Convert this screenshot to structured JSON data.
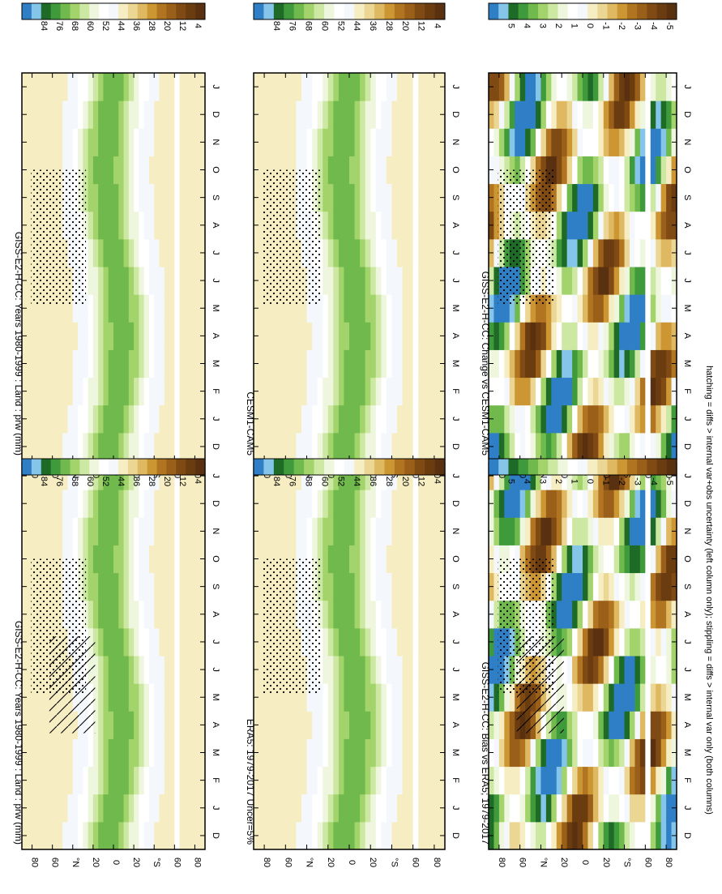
{
  "figure": {
    "footnote": "hatching = diffs > internal var+obs uncertainty (left column only); stippling = diffs > internal var only (both columns)"
  },
  "palettes": {
    "pw": [
      "#2f7fc6",
      "#86c5ea",
      "#1e6b28",
      "#3f9a3c",
      "#70b94c",
      "#a3d36b",
      "#cde8a3",
      "#eef6de",
      "#ffffff",
      "#f4f8fd",
      "#f6eec2",
      "#ecd694",
      "#dfb862",
      "#cc9633",
      "#b17420",
      "#9a5f19",
      "#7f4a13",
      "#6b3c10",
      "#5a3110"
    ],
    "diff": [
      "#2f7fc6",
      "#86c5ea",
      "#1e6b28",
      "#3f9a3c",
      "#70b94c",
      "#a3d36b",
      "#cde8a3",
      "#eef6de",
      "#ffffff",
      "#f4f8fd",
      "#f6eec2",
      "#ecd694",
      "#dfb862",
      "#cc9633",
      "#b17420",
      "#9a5f19",
      "#7f4a13",
      "#6b3c10",
      "#5a3110"
    ]
  },
  "chart_data": [
    {
      "type": "heatmap",
      "panel": "row1-left",
      "title": "GISS-E2-H-CC: Years 1980-1999 : Land : prw (mm)",
      "field": "pw",
      "hatching": true,
      "stippling": true,
      "x": [
        "D",
        "J",
        "F",
        "M",
        "A",
        "M",
        "J",
        "J",
        "A",
        "S",
        "O",
        "N",
        "D",
        "J"
      ],
      "y_ticks": [
        "80",
        "60",
        "°N",
        "20",
        "0",
        "20",
        "°S",
        "60",
        "80"
      ],
      "ylim": [
        -90,
        90
      ]
    },
    {
      "type": "heatmap",
      "panel": "row1-right",
      "title": "GISS-E2-H-CC: Years 1980-1999 : Land : prw (mm)",
      "field": "pw",
      "hatching": false,
      "stippling": true,
      "x": [
        "D",
        "J",
        "F",
        "M",
        "A",
        "M",
        "J",
        "J",
        "A",
        "S",
        "O",
        "N",
        "D",
        "J"
      ],
      "y_ticks": [
        "80",
        "60",
        "°N",
        "20",
        "0",
        "20",
        "°S",
        "60",
        "80"
      ],
      "ylim": [
        -90,
        90
      ]
    },
    {
      "type": "heatmap",
      "panel": "row2-left",
      "title": "ERA5: 1979-2017 Uncer=5%",
      "field": "pw",
      "hatching": false,
      "stippling": true,
      "x": [
        "D",
        "J",
        "F",
        "M",
        "A",
        "M",
        "J",
        "J",
        "A",
        "S",
        "O",
        "N",
        "D",
        "J"
      ],
      "y_ticks": [
        "80",
        "60",
        "°N",
        "20",
        "0",
        "20",
        "°S",
        "60",
        "80"
      ],
      "ylim": [
        -90,
        90
      ]
    },
    {
      "type": "heatmap",
      "panel": "row2-right",
      "title": "CESM1-CAM5",
      "field": "pw",
      "hatching": false,
      "stippling": true,
      "x": [
        "D",
        "J",
        "F",
        "M",
        "A",
        "M",
        "J",
        "J",
        "A",
        "S",
        "O",
        "N",
        "D",
        "J"
      ],
      "y_ticks": [
        "80",
        "60",
        "°N",
        "20",
        "0",
        "20",
        "°S",
        "60",
        "80"
      ],
      "ylim": [
        -90,
        90
      ]
    },
    {
      "type": "heatmap",
      "panel": "row3-left",
      "title": "GISS-E2-H-CC: Bias vs ERA5; 1979-2017",
      "field": "bias",
      "hatching": true,
      "stippling": true,
      "x": [
        "D",
        "J",
        "F",
        "M",
        "A",
        "M",
        "J",
        "J",
        "A",
        "S",
        "O",
        "N",
        "D",
        "J"
      ],
      "y_ticks": [
        "80",
        "60",
        "°N",
        "20",
        "0",
        "20",
        "°S",
        "60",
        "80"
      ],
      "ylim": [
        -90,
        90
      ]
    },
    {
      "type": "heatmap",
      "panel": "row3-right",
      "title": "GISS-E2-H-CC: Change vs CESM1-CAM5",
      "field": "change",
      "hatching": false,
      "stippling": true,
      "x": [
        "D",
        "J",
        "F",
        "M",
        "A",
        "M",
        "J",
        "J",
        "A",
        "S",
        "O",
        "N",
        "D",
        "J"
      ],
      "y_ticks": [
        "80",
        "60",
        "°N",
        "20",
        "0",
        "20",
        "°S",
        "60",
        "80"
      ],
      "ylim": [
        -90,
        90
      ]
    }
  ],
  "colorbars": [
    {
      "panel": "row1-left",
      "labels": [
        "84",
        "76",
        "68",
        "60",
        "52",
        "44",
        "36",
        "28",
        "20",
        "12",
        "4"
      ]
    },
    {
      "panel": "row1-right",
      "labels": [
        "84",
        "76",
        "68",
        "60",
        "52",
        "44",
        "36",
        "28",
        "20",
        "12",
        "4"
      ]
    },
    {
      "panel": "row2-left",
      "labels": [
        "84",
        "76",
        "68",
        "60",
        "52",
        "44",
        "36",
        "28",
        "20",
        "12",
        "4"
      ]
    },
    {
      "panel": "row2-right",
      "labels": [
        "84",
        "76",
        "68",
        "60",
        "52",
        "44",
        "36",
        "28",
        "20",
        "12",
        "4"
      ]
    },
    {
      "panel": "row3-left",
      "labels": [
        "5",
        "4",
        "3",
        "2",
        "1",
        "0",
        "-1",
        "-2",
        "-3",
        "-4",
        "-5"
      ]
    },
    {
      "panel": "row3-right",
      "labels": [
        "5",
        "4",
        "3",
        "2",
        "1",
        "0",
        "-1",
        "-2",
        "-3",
        "-4",
        "-5"
      ]
    }
  ]
}
